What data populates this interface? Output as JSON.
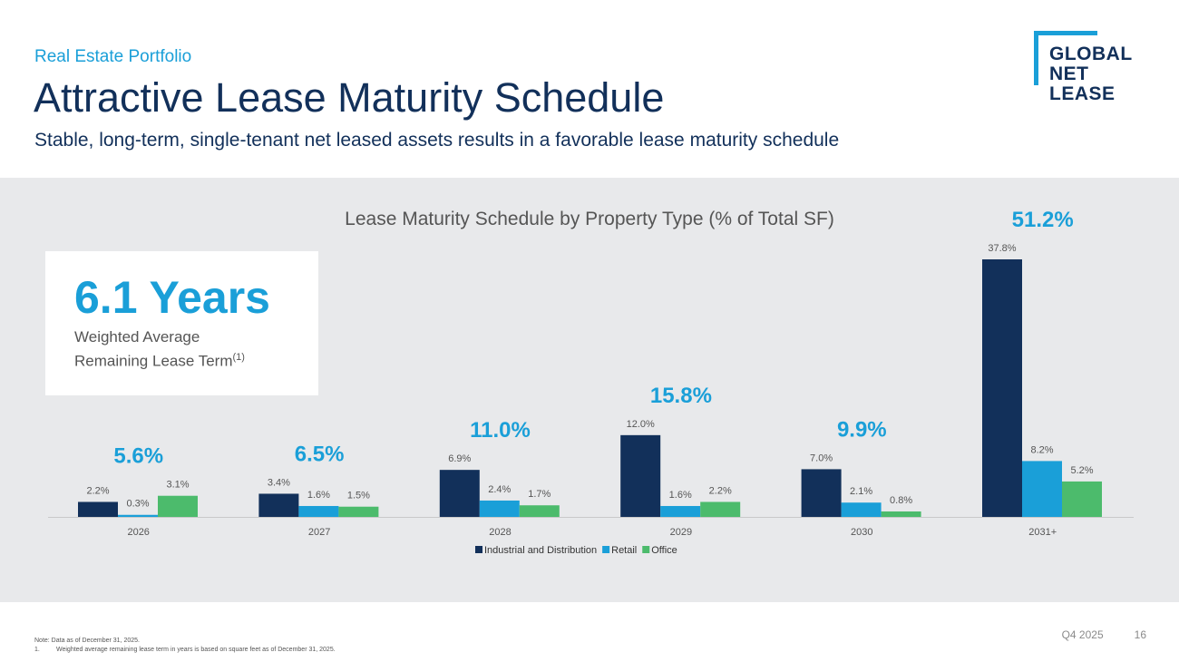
{
  "header": {
    "kicker": "Real Estate Portfolio",
    "title": "Attractive Lease Maturity Schedule",
    "subtitle": "Stable, long-term, single-tenant net leased assets results in a favorable lease maturity schedule"
  },
  "logo": {
    "line1": "GLOBAL",
    "line2": "NET",
    "line3": "LEASE"
  },
  "callout": {
    "value": "6.1 Years",
    "label_line1": "Weighted Average",
    "label_line2": "Remaining Lease Term",
    "footnote_ref": "(1)"
  },
  "colors": {
    "navy": "#12305a",
    "accent": "#1a9fd8",
    "green": "#4cbb6c"
  },
  "chart_data": {
    "type": "bar",
    "title": "Lease Maturity Schedule by Property Type (% of Total SF)",
    "categories": [
      "2026",
      "2027",
      "2028",
      "2029",
      "2030",
      "2031+"
    ],
    "series": [
      {
        "name": "Industrial and Distribution",
        "color": "#12305a",
        "values": [
          2.2,
          3.4,
          6.9,
          12.0,
          7.0,
          37.8
        ]
      },
      {
        "name": "Retail",
        "color": "#1a9fd8",
        "values": [
          0.3,
          1.6,
          2.4,
          1.6,
          2.1,
          8.2
        ]
      },
      {
        "name": "Office",
        "color": "#4cbb6c",
        "values": [
          3.1,
          1.5,
          1.7,
          2.2,
          0.8,
          5.2
        ]
      }
    ],
    "totals": [
      "5.6%",
      "6.5%",
      "11.0%",
      "15.8%",
      "9.9%",
      "51.2%"
    ],
    "value_suffix": "%",
    "ylim": [
      0,
      37.8
    ],
    "grid": false,
    "legend": "bottom-center"
  },
  "footer": {
    "note": "Note: Data as of December 31, 2025.",
    "fn_num": "1.",
    "fn_text": "Weighted average remaining lease term in years is based on square feet as of December 31, 2025.",
    "period": "Q4 2025",
    "page": "16"
  }
}
